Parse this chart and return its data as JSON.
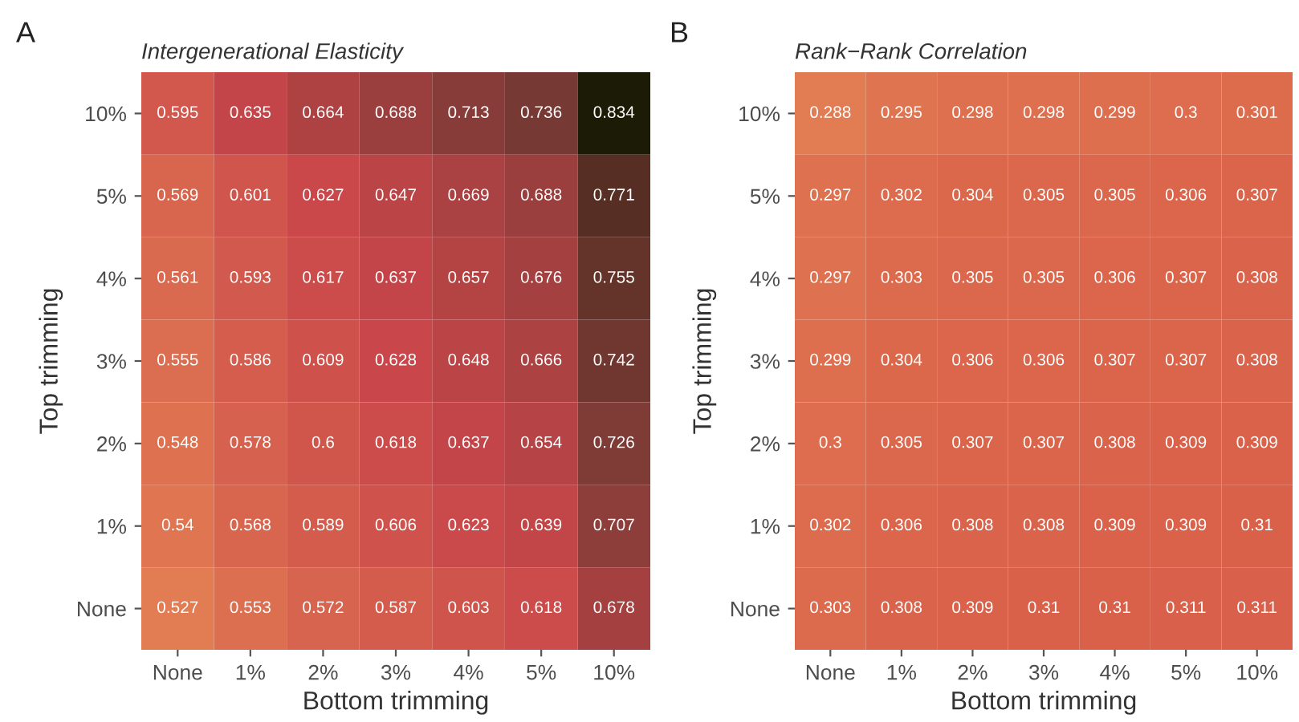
{
  "chart_data": [
    {
      "type": "heatmap",
      "title": "Intergenerational Elasticity",
      "xlabel": "Bottom trimming",
      "ylabel": "Top trimming",
      "annotations": [
        "A"
      ],
      "data_labels": true,
      "grid": false,
      "colors": [
        "#e27c52",
        "#c9464a",
        "#7a3a35",
        "#1c1c06"
      ],
      "categories": [
        "None",
        "1%",
        "2%",
        "3%",
        "4%",
        "5%",
        "10%"
      ],
      "y_categories": [
        "10%",
        "5%",
        "4%",
        "3%",
        "2%",
        "1%",
        "None"
      ],
      "cells": [
        [
          0.595,
          0.635,
          0.664,
          0.688,
          0.713,
          0.736,
          0.834
        ],
        [
          0.569,
          0.601,
          0.627,
          0.647,
          0.669,
          0.688,
          0.771
        ],
        [
          0.561,
          0.593,
          0.617,
          0.637,
          0.657,
          0.676,
          0.755
        ],
        [
          0.555,
          0.586,
          0.609,
          0.628,
          0.648,
          0.666,
          0.742
        ],
        [
          0.548,
          0.578,
          0.6,
          0.618,
          0.637,
          0.654,
          0.726
        ],
        [
          0.54,
          0.568,
          0.589,
          0.606,
          0.623,
          0.639,
          0.707
        ],
        [
          0.527,
          0.553,
          0.572,
          0.587,
          0.603,
          0.618,
          0.678
        ]
      ]
    },
    {
      "type": "heatmap",
      "title": "Rank−Rank Correlation",
      "xlabel": "Bottom trimming",
      "ylabel": "Top trimming",
      "annotations": [
        "B"
      ],
      "data_labels": true,
      "grid": false,
      "colors": [
        "#e27c52",
        "#d9604a"
      ],
      "categories": [
        "None",
        "1%",
        "2%",
        "3%",
        "4%",
        "5%",
        "10%"
      ],
      "y_categories": [
        "10%",
        "5%",
        "4%",
        "3%",
        "2%",
        "1%",
        "None"
      ],
      "cells": [
        [
          0.288,
          0.295,
          0.298,
          0.298,
          0.299,
          0.3,
          0.301
        ],
        [
          0.297,
          0.302,
          0.304,
          0.305,
          0.305,
          0.306,
          0.307
        ],
        [
          0.297,
          0.303,
          0.305,
          0.305,
          0.306,
          0.307,
          0.308
        ],
        [
          0.299,
          0.304,
          0.306,
          0.306,
          0.307,
          0.307,
          0.308
        ],
        [
          0.3,
          0.305,
          0.307,
          0.307,
          0.308,
          0.309,
          0.309
        ],
        [
          0.302,
          0.306,
          0.308,
          0.308,
          0.309,
          0.309,
          0.31
        ],
        [
          0.303,
          0.308,
          0.309,
          0.31,
          0.31,
          0.311,
          0.311
        ]
      ]
    }
  ]
}
